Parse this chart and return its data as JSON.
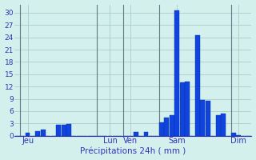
{
  "xlabel": "Précipitations 24h ( mm )",
  "background_color": "#d4f0ec",
  "bar_color": "#1144dd",
  "bar_edge_color": "#0033aa",
  "grid_color": "#aacccc",
  "vline_color": "#667788",
  "axis_label_color": "#3333bb",
  "tick_label_color": "#3333bb",
  "ylim": [
    0,
    32
  ],
  "yticks": [
    0,
    3,
    6,
    9,
    12,
    15,
    18,
    21,
    24,
    27,
    30
  ],
  "day_labels": [
    "Jeu",
    "Lun",
    "Ven",
    "Sam",
    "Dim"
  ],
  "day_tick_positions": [
    2,
    18,
    22,
    31,
    43
  ],
  "vline_positions": [
    0.5,
    15.5,
    20.5,
    27.5,
    41.5
  ],
  "n_bars": 46,
  "values": [
    0,
    0,
    0.8,
    0,
    1.2,
    1.5,
    0,
    0,
    2.6,
    2.6,
    2.8,
    0,
    0,
    0,
    0,
    0,
    0,
    0,
    0,
    0,
    0,
    0,
    0,
    1.0,
    0,
    1.0,
    0,
    0,
    3.2,
    4.5,
    5.0,
    30.5,
    13.0,
    13.2,
    0,
    24.5,
    8.8,
    8.5,
    0,
    5.0,
    5.5,
    0,
    0.7,
    0.2,
    0,
    0
  ]
}
